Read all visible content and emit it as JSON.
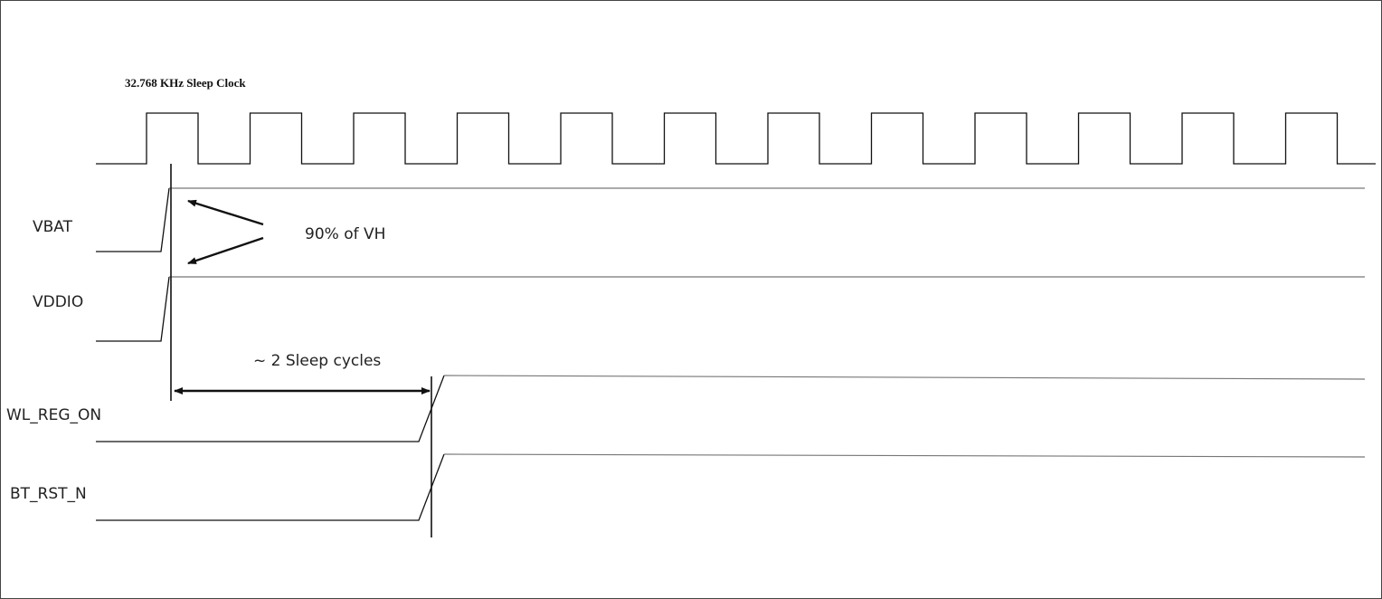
{
  "diagram": {
    "clock_title": "32.768 KHz Sleep Clock",
    "signals": {
      "vbat": "VBAT",
      "vddio": "VDDIO",
      "wl_reg_on": "WL_REG_ON",
      "bt_rst_n": "BT_RST_N"
    },
    "annotations": {
      "threshold": "90% of VH",
      "delay": "~ 2 Sleep cycles"
    },
    "clock_pulse_count": 12
  }
}
